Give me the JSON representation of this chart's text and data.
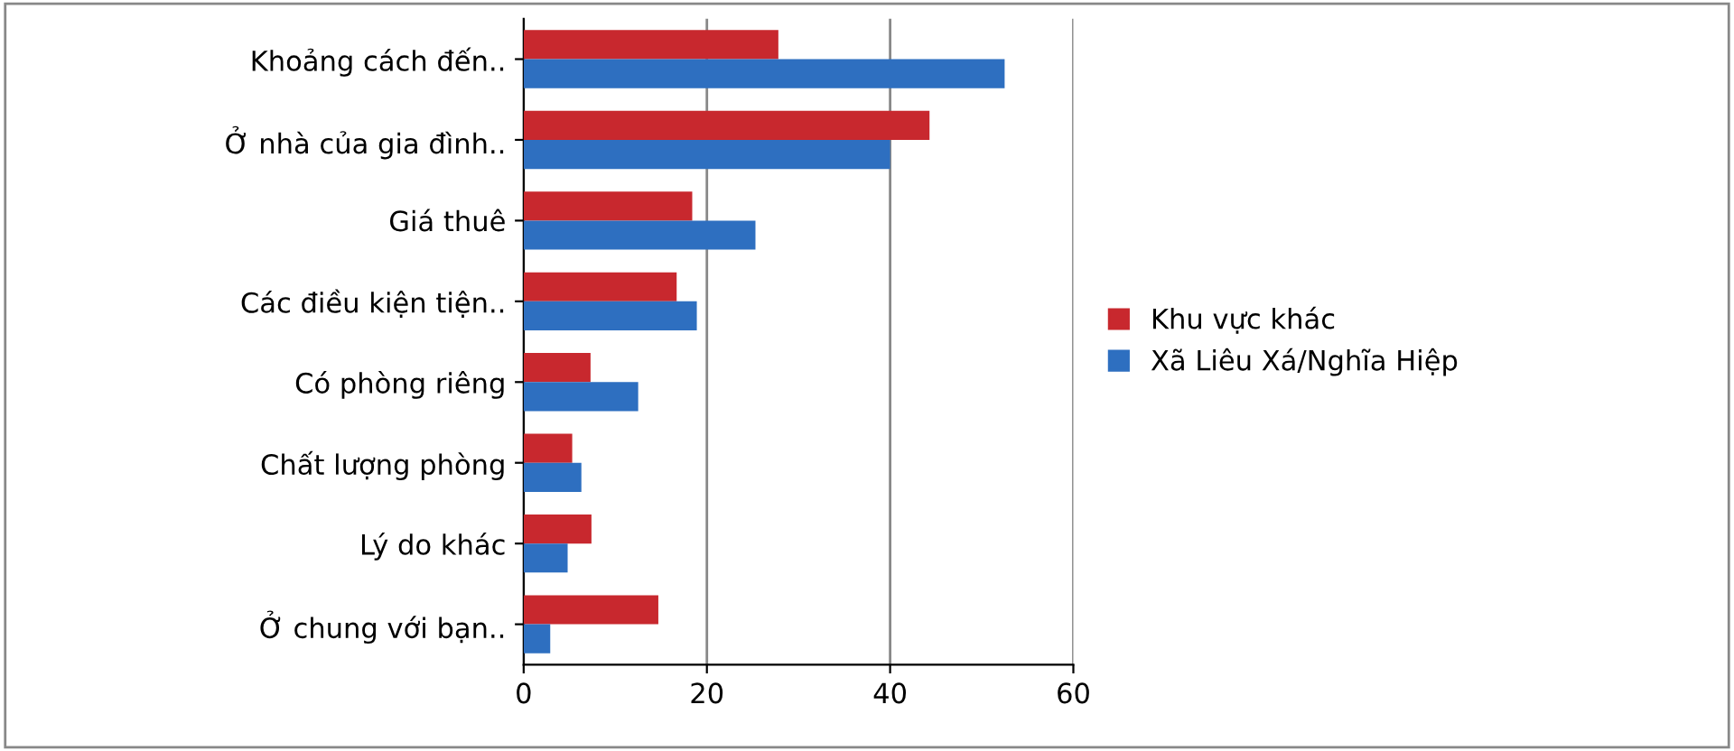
{
  "chart_data": {
    "type": "bar",
    "orientation": "horizontal",
    "categories": [
      "Khoảng cách đến..",
      "Ở nhà của gia đình..",
      "Giá thuê",
      "Các điều kiện tiện..",
      "Có phòng riêng",
      "Chất lượng phòng",
      "Lý do khác",
      "Ở chung với bạn.."
    ],
    "series": [
      {
        "name": "Khu vực khác",
        "color": "#c8282e",
        "values": [
          27.8,
          44.3,
          18.4,
          16.7,
          7.3,
          5.3,
          7.4,
          14.7
        ]
      },
      {
        "name": "Xã Liêu Xá/Nghĩa Hiệp",
        "color": "#2e6fc0",
        "values": [
          52.5,
          40,
          25.3,
          18.9,
          12.5,
          6.3,
          4.8,
          2.9
        ]
      }
    ],
    "xlim": [
      0,
      60
    ],
    "xticks": [
      0,
      20,
      40,
      60
    ],
    "grid": "x",
    "legend": "right"
  }
}
